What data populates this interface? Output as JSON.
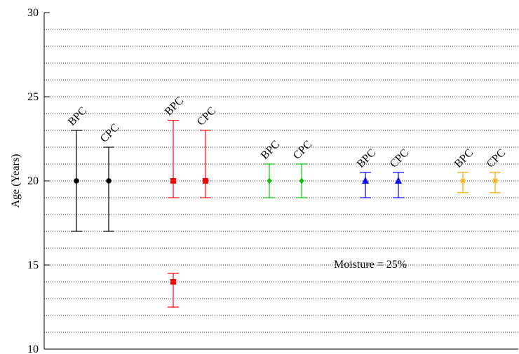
{
  "chart_data": {
    "type": "scatter",
    "ylabel": "Age (Years)",
    "xlabel": "",
    "ylim": [
      10,
      30
    ],
    "y_ticks": [
      10,
      15,
      20,
      25,
      30
    ],
    "grid": "horizontal dotted lines every 1 year",
    "annotation": "Moisture = 25%",
    "groups": [
      {
        "color": "#000000",
        "marker": "circle",
        "points": [
          {
            "label": "BPC",
            "y": 20,
            "low": 17,
            "high": 23
          },
          {
            "label": "CPC",
            "y": 20,
            "low": 17,
            "high": 22
          }
        ]
      },
      {
        "color": "#ff0000",
        "marker": "square",
        "points": [
          {
            "label": "BPC",
            "y": 20,
            "low": 19,
            "high": 23.6
          },
          {
            "label": "",
            "y": 14,
            "low": 12.5,
            "high": 14.5
          },
          {
            "label": "CPC",
            "y": 20,
            "low": 19,
            "high": 23
          }
        ]
      },
      {
        "color": "#00cc00",
        "marker": "diamond",
        "points": [
          {
            "label": "BPC",
            "y": 20,
            "low": 19,
            "high": 21
          },
          {
            "label": "CPC",
            "y": 20,
            "low": 19,
            "high": 21
          }
        ]
      },
      {
        "color": "#0000ff",
        "marker": "triangle",
        "points": [
          {
            "label": "BPC",
            "y": 20,
            "low": 19,
            "high": 20.5
          },
          {
            "label": "CPC",
            "y": 20,
            "low": 19,
            "high": 20.5
          }
        ]
      },
      {
        "color": "#ffa500",
        "marker": "star",
        "points": [
          {
            "label": "BPC",
            "y": 20,
            "low": 19.3,
            "high": 20.5
          },
          {
            "label": "CPC",
            "y": 20,
            "low": 19.3,
            "high": 20.5
          }
        ]
      }
    ]
  }
}
